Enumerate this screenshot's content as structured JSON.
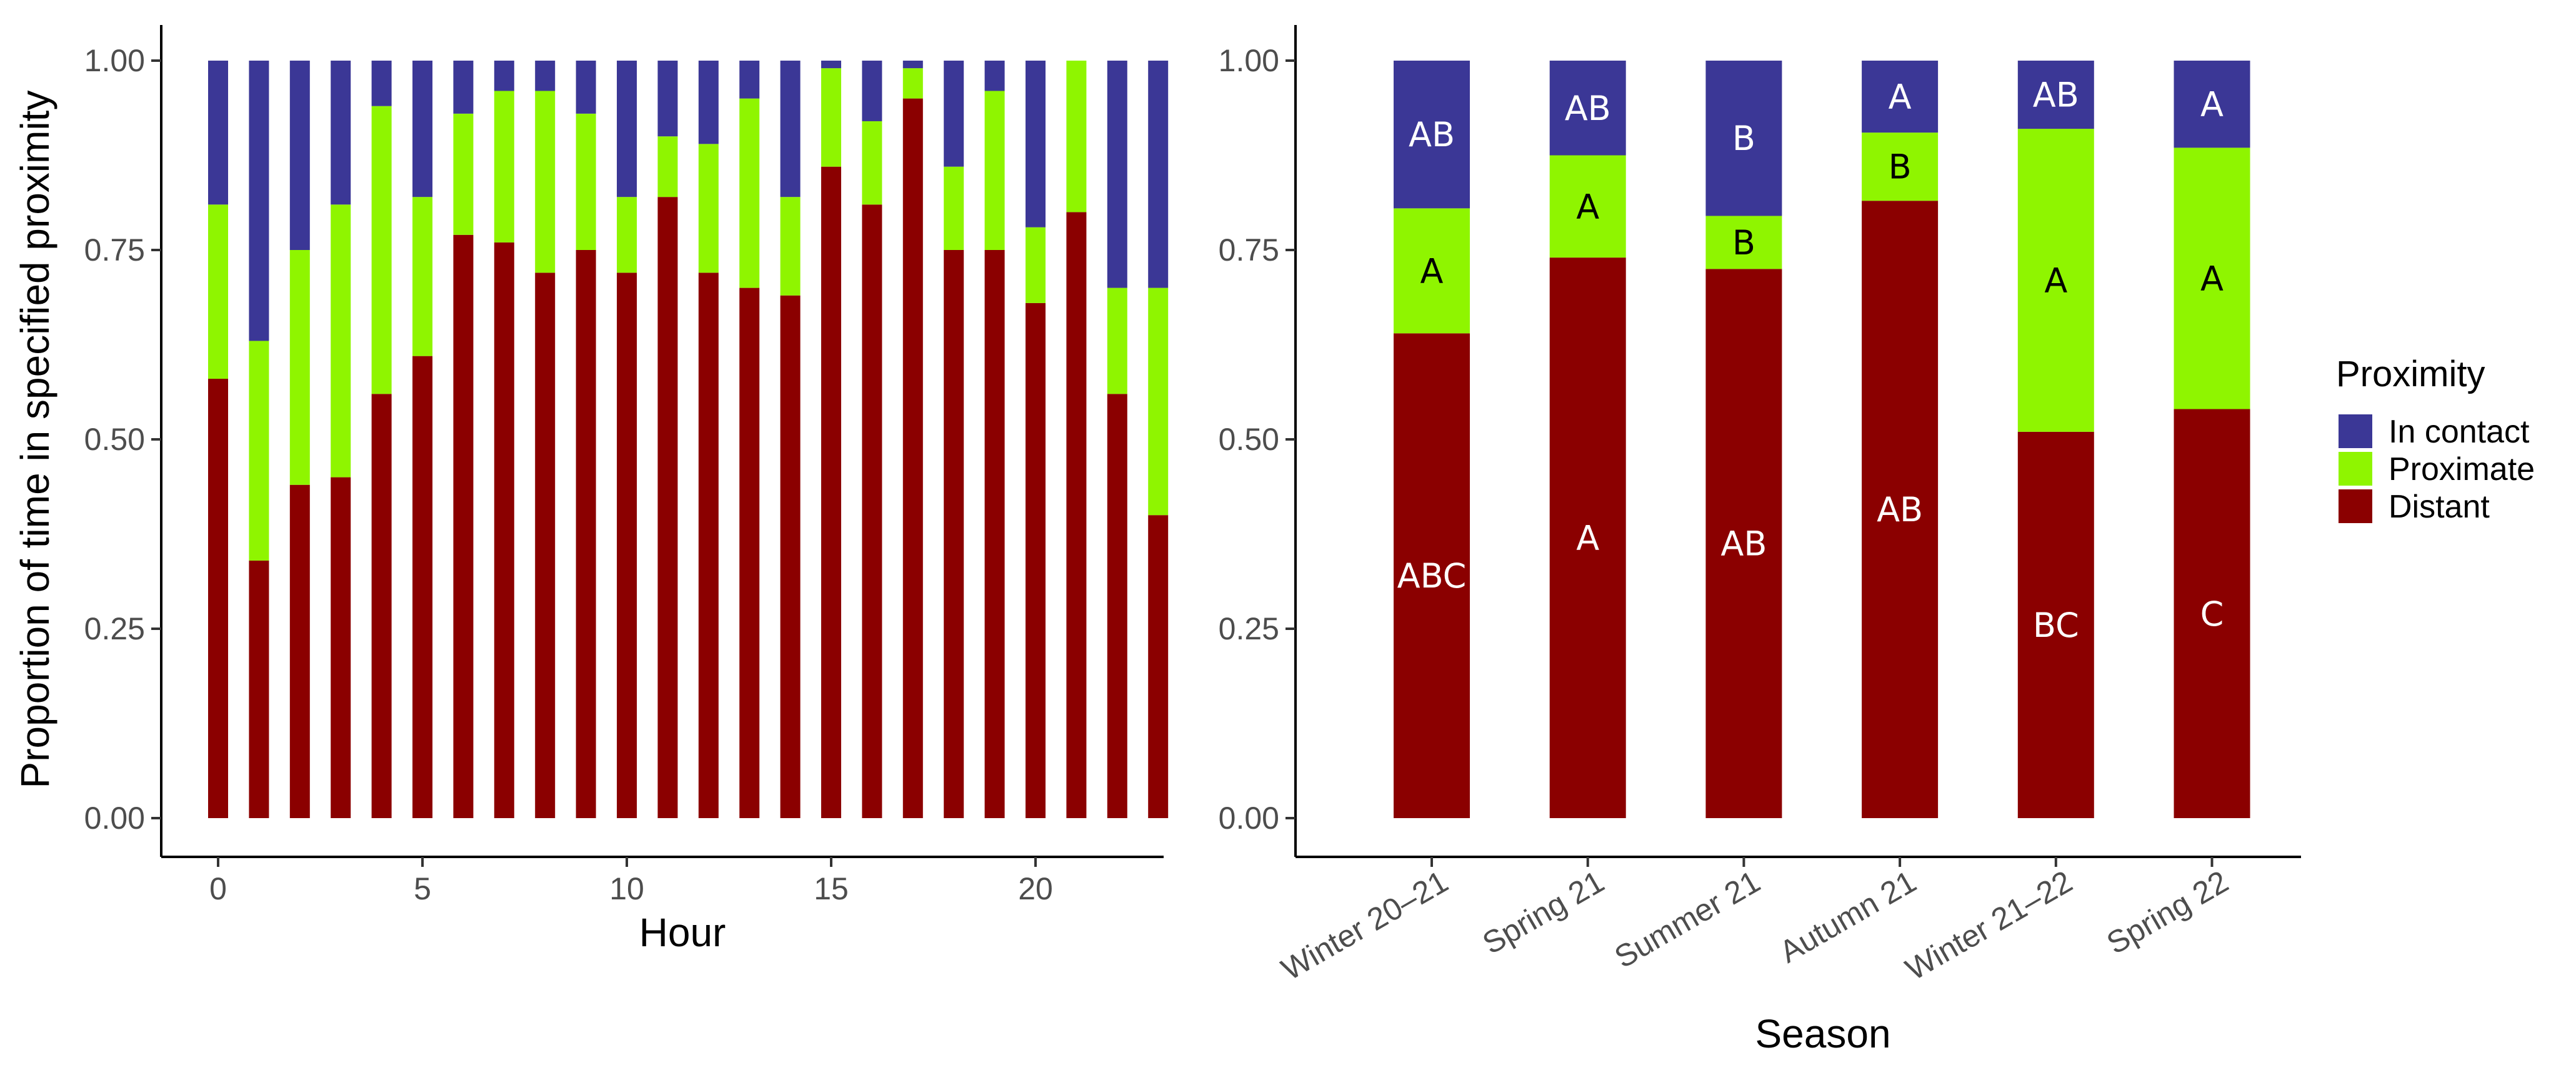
{
  "colors": {
    "in_contact": "#3b3796",
    "proximate": "#8ff500",
    "distant": "#8b0000"
  },
  "chart_data": [
    {
      "type": "bar",
      "stacked": true,
      "title": "",
      "xlabel": "Hour",
      "ylabel": "Proportion of time in specified proximity",
      "ylim": [
        0,
        1
      ],
      "y_ticks": [
        "0.00",
        "0.25",
        "0.50",
        "0.75",
        "1.00"
      ],
      "x_ticks": [
        "0",
        "5",
        "10",
        "15",
        "20"
      ],
      "categories": [
        "0",
        "1",
        "2",
        "3",
        "4",
        "5",
        "6",
        "7",
        "8",
        "9",
        "10",
        "11",
        "12",
        "13",
        "14",
        "15",
        "16",
        "17",
        "18",
        "19",
        "20",
        "21",
        "22",
        "23"
      ],
      "series": [
        {
          "name": "Distant",
          "values": [
            0.58,
            0.34,
            0.44,
            0.45,
            0.56,
            0.61,
            0.77,
            0.76,
            0.72,
            0.75,
            0.72,
            0.82,
            0.72,
            0.7,
            0.69,
            0.86,
            0.81,
            0.95,
            0.75,
            0.75,
            0.68,
            0.8,
            0.56,
            0.4
          ]
        },
        {
          "name": "Proximate",
          "values": [
            0.23,
            0.29,
            0.31,
            0.36,
            0.38,
            0.21,
            0.16,
            0.2,
            0.24,
            0.18,
            0.1,
            0.08,
            0.17,
            0.25,
            0.13,
            0.13,
            0.11,
            0.04,
            0.11,
            0.21,
            0.1,
            0.2,
            0.14,
            0.3
          ]
        },
        {
          "name": "In contact",
          "values": [
            0.19,
            0.37,
            0.25,
            0.19,
            0.06,
            0.18,
            0.07,
            0.04,
            0.04,
            0.07,
            0.18,
            0.1,
            0.11,
            0.05,
            0.18,
            0.01,
            0.08,
            0.01,
            0.14,
            0.04,
            0.22,
            0.0,
            0.3,
            0.3
          ]
        }
      ]
    },
    {
      "type": "bar",
      "stacked": true,
      "title": "",
      "xlabel": "Season",
      "ylabel": "",
      "ylim": [
        0,
        1
      ],
      "y_ticks": [
        "0.00",
        "0.25",
        "0.50",
        "0.75",
        "1.00"
      ],
      "categories": [
        "Winter 20–21",
        "Spring 21",
        "Summer 21",
        "Autumn 21",
        "Winter 21–22",
        "Spring 22"
      ],
      "series": [
        {
          "name": "Distant",
          "values": [
            0.64,
            0.74,
            0.725,
            0.815,
            0.51,
            0.54
          ],
          "letters": [
            "ABC",
            "A",
            "AB",
            "AB",
            "BC",
            "C"
          ]
        },
        {
          "name": "Proximate",
          "values": [
            0.165,
            0.135,
            0.07,
            0.09,
            0.4,
            0.345
          ],
          "letters": [
            "A",
            "A",
            "B",
            "B",
            "A",
            "A"
          ]
        },
        {
          "name": "In contact",
          "values": [
            0.195,
            0.125,
            0.205,
            0.095,
            0.09,
            0.115
          ],
          "letters": [
            "AB",
            "AB",
            "B",
            "A",
            "AB",
            "A"
          ]
        }
      ],
      "legend": {
        "title": "Proximity",
        "position": "right",
        "entries": [
          "In contact",
          "Proximate",
          "Distant"
        ]
      }
    }
  ]
}
